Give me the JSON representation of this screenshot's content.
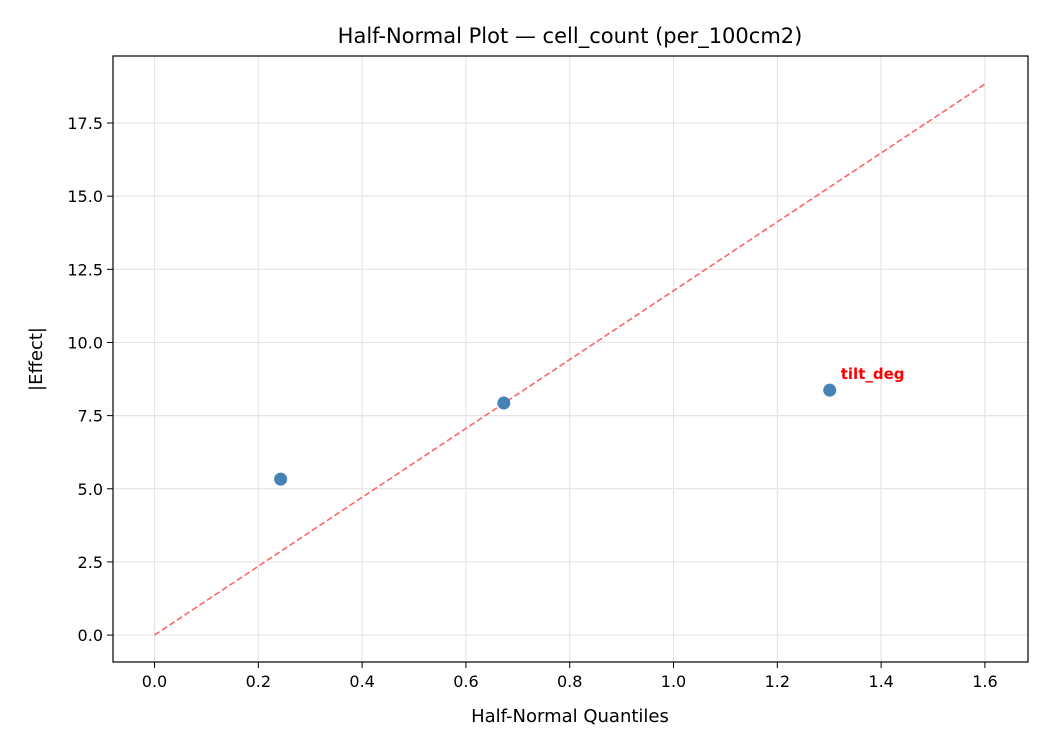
{
  "chart_data": {
    "type": "scatter",
    "title": "Half-Normal Plot — cell_count (per_100cm2)",
    "xlabel": "Half-Normal Quantiles",
    "ylabel": "|Effect|",
    "xlim": [
      -0.08,
      1.683
    ],
    "ylim": [
      -0.92,
      19.79
    ],
    "xticks": [
      0.0,
      0.2,
      0.4,
      0.6,
      0.8,
      1.0,
      1.2,
      1.4,
      1.6
    ],
    "xtick_labels": [
      "0.0",
      "0.2",
      "0.4",
      "0.6",
      "0.8",
      "1.0",
      "1.2",
      "1.4",
      "1.6"
    ],
    "yticks": [
      0.0,
      2.5,
      5.0,
      7.5,
      10.0,
      12.5,
      15.0,
      17.5
    ],
    "ytick_labels": [
      "0.0",
      "2.5",
      "5.0",
      "7.5",
      "10.0",
      "12.5",
      "15.0",
      "17.5"
    ],
    "grid": true,
    "points": [
      {
        "x": 0.243,
        "y": 5.33,
        "label": ""
      },
      {
        "x": 0.673,
        "y": 7.93,
        "label": ""
      },
      {
        "x": 1.301,
        "y": 8.37,
        "label": "tilt_deg"
      }
    ],
    "reference_line": {
      "x": [
        0.0,
        1.6
      ],
      "y": [
        0.0,
        18.83
      ],
      "style": "dashed"
    },
    "colors": {
      "points": "#4682b4",
      "reference_line": "#ff6666",
      "annotation": "#ff0000",
      "grid": "#e5e5e5"
    }
  }
}
